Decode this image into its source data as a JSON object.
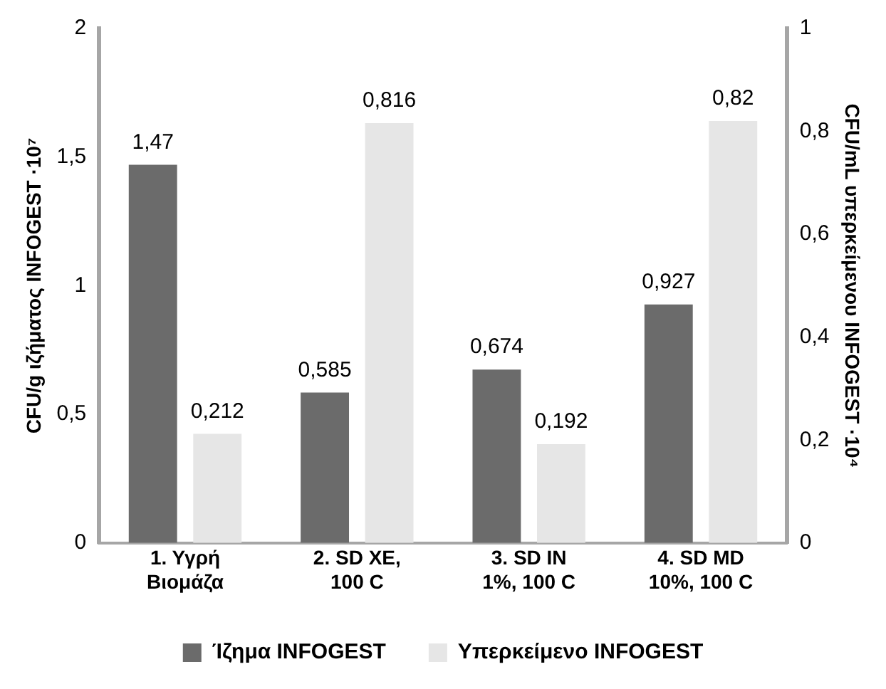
{
  "chart_data": {
    "type": "bar",
    "categories": [
      "1. Υγρή Βιομάζα",
      "2. SD XE, 100 C",
      "3. SD IN 1%, 100 C",
      "4. SD MD 10%, 100 C"
    ],
    "ylabel": "CFU/g ιζήματος INFOGEST ·10⁷",
    "y2label": "CFU/mL υπερκείμενου INFOGEST ·10⁴",
    "ylim": [
      0,
      2
    ],
    "yticks": [
      0,
      {
        "value": 0.5,
        "label": "0,5"
      },
      1,
      {
        "value": 1.5,
        "label": "1,5"
      },
      2
    ],
    "y2lim": [
      0,
      1
    ],
    "y2ticks": [
      0,
      {
        "value": 0.2,
        "label": "0,2"
      },
      {
        "value": 0.4,
        "label": "0,4"
      },
      {
        "value": 0.6,
        "label": "0,6"
      },
      {
        "value": 0.8,
        "label": "0,8"
      },
      1
    ],
    "series": [
      {
        "name": "Ίζημα INFOGEST",
        "color": "#6b6b6b",
        "values": [
          1.47,
          0.585,
          0.674,
          0.927
        ],
        "value_labels": [
          "1,47",
          "0,585",
          "0,674",
          "0,927"
        ]
      },
      {
        "name": "Υπερκείμενο INFOGEST",
        "color": "#e6e6e6",
        "axis": "y2",
        "values": [
          0.212,
          0.816,
          0.192,
          0.82
        ],
        "value_labels": [
          "0,212",
          "0,816",
          "0,192",
          "0,82"
        ]
      }
    ],
    "grid": false,
    "legend": "bottom"
  }
}
